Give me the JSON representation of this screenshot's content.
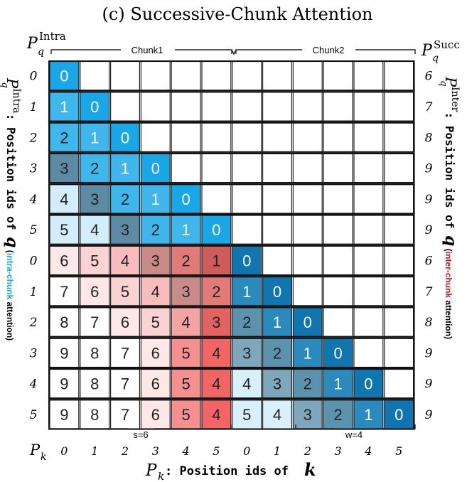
{
  "title": "(c) Successive-Chunk Attention",
  "left_header": {
    "base": "P",
    "sub": "q",
    "sup": "Intra"
  },
  "right_header": {
    "base": "P",
    "sub": "q",
    "sup": "Succ"
  },
  "chunk_labels": [
    "Chunk1",
    "Chunk2"
  ],
  "row_ids_left": [
    "0",
    "1",
    "2",
    "3",
    "4",
    "5",
    "0",
    "1",
    "2",
    "3",
    "4",
    "5"
  ],
  "row_ids_right": [
    "6",
    "7",
    "8",
    "9",
    "9",
    "9",
    "6",
    "7",
    "8",
    "9",
    "9",
    "9"
  ],
  "col_axis_label": {
    "base": "P",
    "sub": "k"
  },
  "col_ids": [
    "0",
    "1",
    "2",
    "3",
    "4",
    "5",
    "0",
    "1",
    "2",
    "3",
    "4",
    "5"
  ],
  "s_label": "s=6",
  "w_label": "w=4",
  "x_title": {
    "base": "P",
    "sub": "k",
    "text": ": Position ids of ",
    "var": "k"
  },
  "left_vertical": {
    "base": "P",
    "sup": "Intra",
    "sub": "q",
    "text": ": Position ids of ",
    "var": "q",
    "paren_open": " (",
    "colored": "intra-chunk",
    "rest": " attention)"
  },
  "right_vertical": {
    "base": "P",
    "sup": "Inter",
    "sub": "q",
    "text": ": Position ids of ",
    "var": "q",
    "paren_open": " (",
    "colored": "inter-chunk",
    "rest": " attention)"
  },
  "colors": {
    "intra_accent": "#1aa7e8",
    "inter_accent": "#c4161c",
    "blue_shades": [
      "#1aa7e8",
      "#3fb6ec",
      "#2f97c8",
      "#5c8ba3",
      "#1f86b8",
      "#0f76b0"
    ],
    "blue_light": "#d3eefb",
    "red_shades": [
      "#fde4e4",
      "#fbcfcf",
      "#f7b5b5",
      "#c98585",
      "#e87272",
      "#d95f5f"
    ],
    "red_bright": [
      "#f29595",
      "#f36b6b"
    ]
  },
  "matrix": [
    [
      "0",
      "",
      "",
      "",
      "",
      "",
      "",
      "",
      "",
      "",
      "",
      ""
    ],
    [
      "1",
      "0",
      "",
      "",
      "",
      "",
      "",
      "",
      "",
      "",
      "",
      ""
    ],
    [
      "2",
      "1",
      "0",
      "",
      "",
      "",
      "",
      "",
      "",
      "",
      "",
      ""
    ],
    [
      "3",
      "2",
      "1",
      "0",
      "",
      "",
      "",
      "",
      "",
      "",
      "",
      ""
    ],
    [
      "4",
      "3",
      "2",
      "1",
      "0",
      "",
      "",
      "",
      "",
      "",
      "",
      ""
    ],
    [
      "5",
      "4",
      "3",
      "2",
      "1",
      "0",
      "",
      "",
      "",
      "",
      "",
      ""
    ],
    [
      "6",
      "5",
      "4",
      "3",
      "2",
      "1",
      "0",
      "",
      "",
      "",
      "",
      ""
    ],
    [
      "7",
      "6",
      "5",
      "4",
      "3",
      "2",
      "1",
      "0",
      "",
      "",
      "",
      ""
    ],
    [
      "8",
      "7",
      "6",
      "5",
      "4",
      "3",
      "2",
      "1",
      "0",
      "",
      "",
      ""
    ],
    [
      "9",
      "8",
      "7",
      "6",
      "5",
      "4",
      "3",
      "2",
      "1",
      "0",
      "",
      ""
    ],
    [
      "9",
      "8",
      "7",
      "6",
      "5",
      "4",
      "4",
      "3",
      "2",
      "1",
      "0",
      ""
    ],
    [
      "9",
      "8",
      "7",
      "6",
      "5",
      "4",
      "5",
      "4",
      "3",
      "2",
      "1",
      "0"
    ]
  ]
}
